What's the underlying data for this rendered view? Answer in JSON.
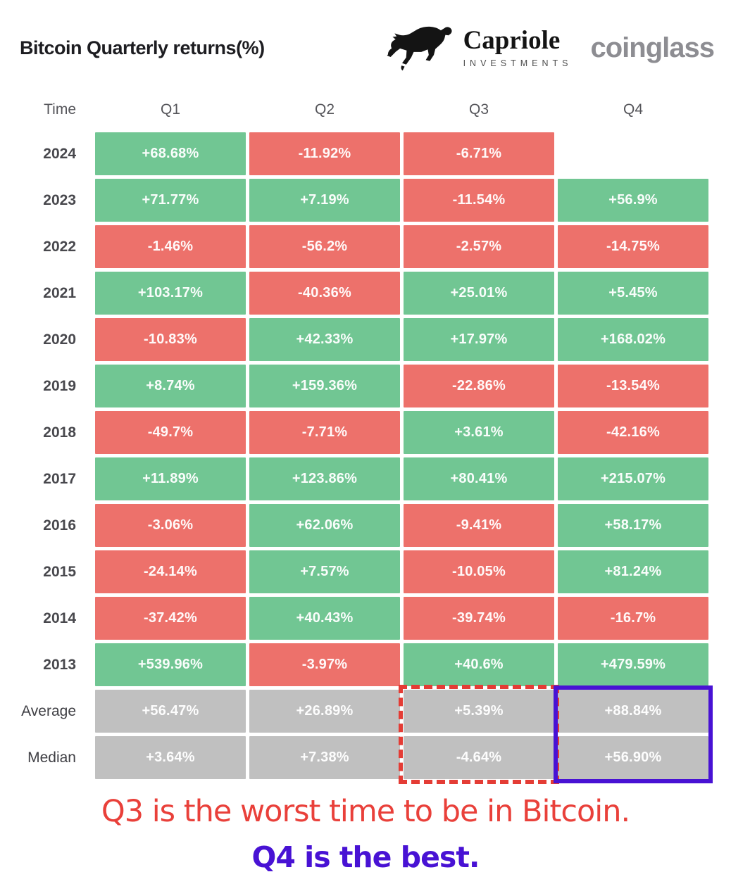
{
  "header": {
    "title": "Bitcoin Quarterly returns(%)",
    "capriole_name": "Capriole",
    "capriole_sub": "INVESTMENTS",
    "coinglass": "coinglass"
  },
  "chart_data": {
    "type": "table",
    "title": "Bitcoin Quarterly returns(%)",
    "row_header": "Time",
    "columns": [
      "Q1",
      "Q2",
      "Q3",
      "Q4"
    ],
    "rows": [
      "2024",
      "2023",
      "2022",
      "2021",
      "2020",
      "2019",
      "2018",
      "2017",
      "2016",
      "2015",
      "2014",
      "2013",
      "Average",
      "Median"
    ],
    "values": [
      [
        68.68,
        -11.92,
        -6.71,
        null
      ],
      [
        71.77,
        7.19,
        -11.54,
        56.9
      ],
      [
        -1.46,
        -56.2,
        -2.57,
        -14.75
      ],
      [
        103.17,
        -40.36,
        25.01,
        5.45
      ],
      [
        -10.83,
        42.33,
        17.97,
        168.02
      ],
      [
        8.74,
        159.36,
        -22.86,
        -13.54
      ],
      [
        -49.7,
        -7.71,
        3.61,
        -42.16
      ],
      [
        11.89,
        123.86,
        80.41,
        215.07
      ],
      [
        -3.06,
        62.06,
        -9.41,
        58.17
      ],
      [
        -24.14,
        7.57,
        -10.05,
        81.24
      ],
      [
        -37.42,
        40.43,
        -39.74,
        -16.7
      ],
      [
        539.96,
        -3.97,
        40.6,
        479.59
      ],
      [
        56.47,
        26.89,
        5.39,
        88.84
      ],
      [
        3.64,
        7.38,
        -4.64,
        56.9
      ]
    ],
    "cell_labels": [
      [
        "+68.68%",
        "-11.92%",
        "-6.71%",
        ""
      ],
      [
        "+71.77%",
        "+7.19%",
        "-11.54%",
        "+56.9%"
      ],
      [
        "-1.46%",
        "-56.2%",
        "-2.57%",
        "-14.75%"
      ],
      [
        "+103.17%",
        "-40.36%",
        "+25.01%",
        "+5.45%"
      ],
      [
        "-10.83%",
        "+42.33%",
        "+17.97%",
        "+168.02%"
      ],
      [
        "+8.74%",
        "+159.36%",
        "-22.86%",
        "-13.54%"
      ],
      [
        "-49.7%",
        "-7.71%",
        "+3.61%",
        "-42.16%"
      ],
      [
        "+11.89%",
        "+123.86%",
        "+80.41%",
        "+215.07%"
      ],
      [
        "-3.06%",
        "+62.06%",
        "-9.41%",
        "+58.17%"
      ],
      [
        "-24.14%",
        "+7.57%",
        "-10.05%",
        "+81.24%"
      ],
      [
        "-37.42%",
        "+40.43%",
        "-39.74%",
        "-16.7%"
      ],
      [
        "+539.96%",
        "-3.97%",
        "+40.6%",
        "+479.59%"
      ],
      [
        "+56.47%",
        "+26.89%",
        "+5.39%",
        "+88.84%"
      ],
      [
        "+3.64%",
        "+7.38%",
        "-4.64%",
        "+56.90%"
      ]
    ],
    "summary_rows": [
      "Average",
      "Median"
    ],
    "highlights": {
      "worst_column": "Q3",
      "worst_border_style": "dashed",
      "best_column": "Q4",
      "best_border_style": "solid"
    },
    "legend_position": "none",
    "grid": false
  },
  "colors": {
    "positive_green": "#71c693",
    "negative_red": "#ed716b",
    "summary_gray": "#c0c0c0",
    "worst_highlight_red": "#e43c35",
    "best_highlight_blue": "#4812d4",
    "caption_red": "#e9403a",
    "caption_blue": "#4812d4"
  },
  "footer": {
    "line1": "Q3 is the worst time to be in Bitcoin.",
    "line2": "Q4 is the best."
  }
}
